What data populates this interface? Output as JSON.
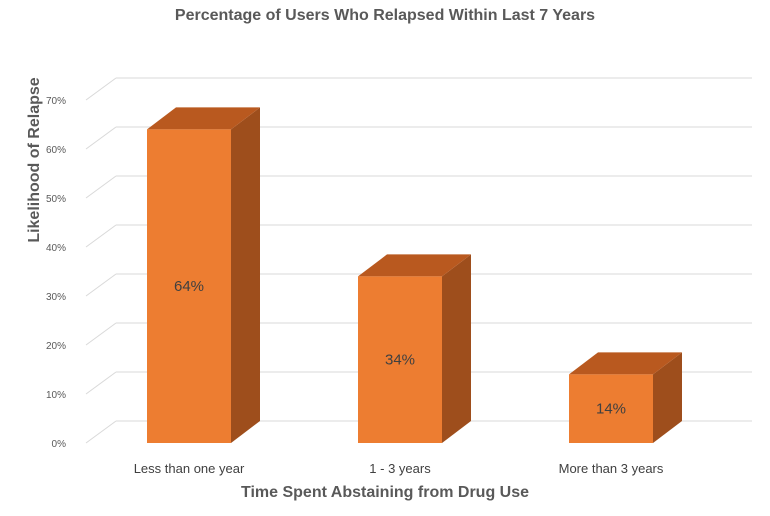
{
  "chart_data": {
    "type": "bar",
    "style": "3d-column",
    "title": "Percentage of Users Who Relapsed Within Last 7 Years",
    "xlabel": "Time Spent Abstaining from Drug Use",
    "ylabel": "Likelihood of Relapse",
    "categories": [
      "Less than one year",
      "1 - 3 years",
      "More than 3 years"
    ],
    "values": [
      64,
      34,
      14
    ],
    "data_labels": [
      "64%",
      "34%",
      "14%"
    ],
    "ylim": [
      0,
      70
    ],
    "yticks": [
      "0%",
      "10%",
      "20%",
      "30%",
      "40%",
      "50%",
      "60%",
      "70%"
    ],
    "grid": true,
    "colors": {
      "front": "#ED7D31",
      "side": "#9E4E1C",
      "top": "#B9591F",
      "grid": "#D9D9D9"
    }
  }
}
